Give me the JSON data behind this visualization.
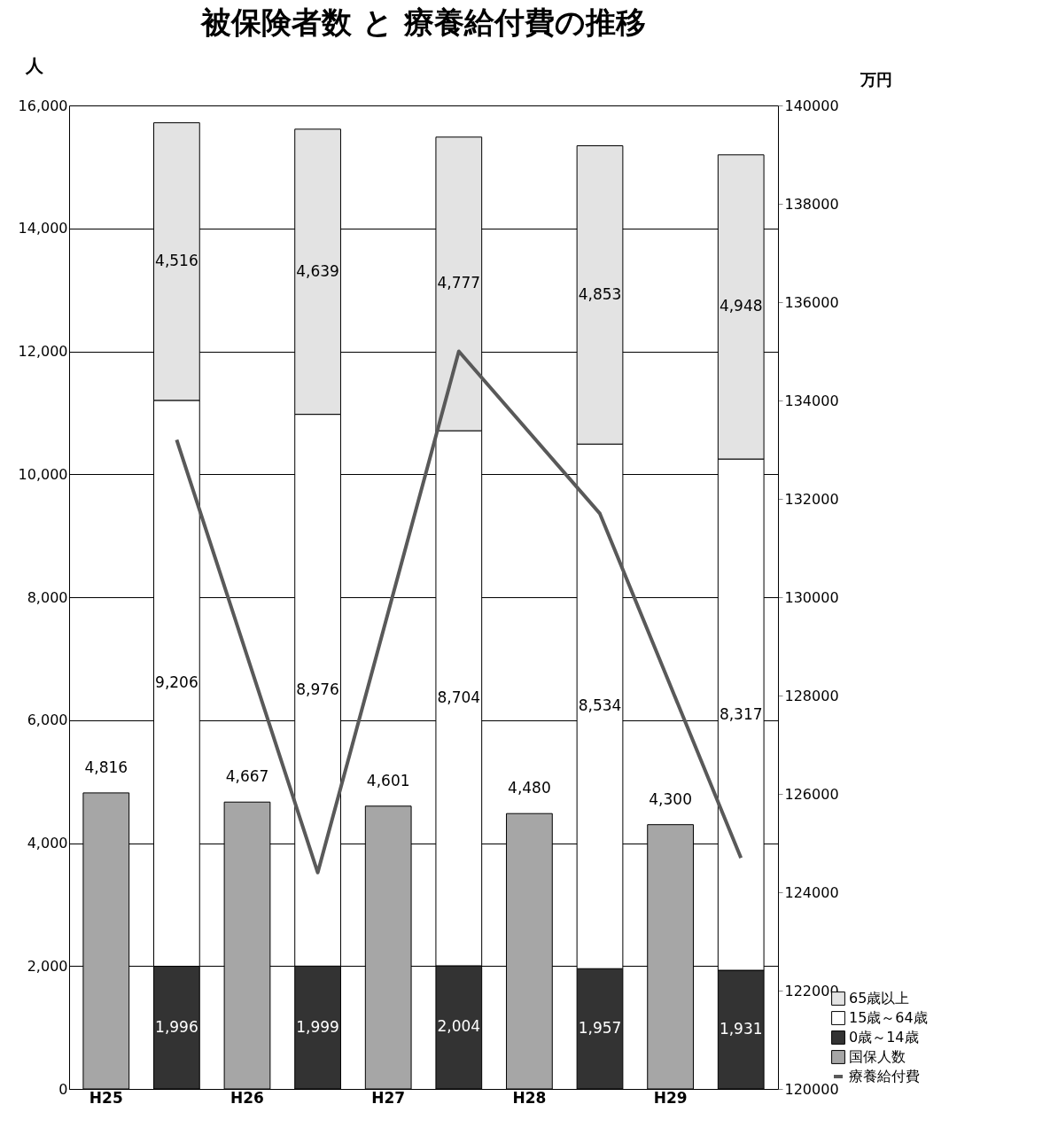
{
  "chart_data": {
    "type": "bar",
    "title": "被保険者数 と 療養給付費の推移",
    "ylabel": "人",
    "y2label": "万円",
    "categories": [
      "H25",
      null,
      "H26",
      null,
      "H27",
      null,
      "H28",
      null,
      "H29",
      null
    ],
    "stacked": true,
    "series": [
      {
        "name": "国保人数",
        "color": "#a6a6a6",
        "values": [
          4816,
          null,
          4667,
          null,
          4601,
          null,
          4480,
          null,
          4300,
          null
        ],
        "value_labels": [
          "4,816",
          null,
          "4,667",
          null,
          "4,601",
          null,
          "4,480",
          null,
          "4,300",
          null
        ]
      },
      {
        "name": "0歳～14歳",
        "color": "#333333",
        "values": [
          null,
          1996,
          null,
          1999,
          null,
          2004,
          null,
          1957,
          null,
          1931
        ],
        "value_labels": [
          null,
          "1,996",
          null,
          "1,999",
          null,
          "2,004",
          null,
          "1,957",
          null,
          "1,931"
        ]
      },
      {
        "name": "15歳～64歳",
        "color": "#ffffff",
        "values": [
          null,
          9206,
          null,
          8976,
          null,
          8704,
          null,
          8534,
          null,
          8317
        ],
        "value_labels": [
          null,
          "9,206",
          null,
          "8,976",
          null,
          "8,704",
          null,
          "8,534",
          null,
          "8,317"
        ]
      },
      {
        "name": "65歳以上",
        "color": "#e3e3e3",
        "values": [
          null,
          4516,
          null,
          4639,
          null,
          4777,
          null,
          4853,
          null,
          4948
        ],
        "value_labels": [
          null,
          "4,516",
          null,
          "4,639",
          null,
          "4,777",
          null,
          "4,853",
          null,
          "4,948"
        ]
      },
      {
        "name": "療養給付費",
        "type": "line",
        "axis": "y2",
        "color": "#595959",
        "values": [
          null,
          133200,
          null,
          124400,
          null,
          135000,
          null,
          131700,
          null,
          124700
        ]
      }
    ],
    "ylim": [
      0,
      16000
    ],
    "yticks": [
      {
        "value": 0,
        "label": "0"
      },
      {
        "value": 2000,
        "label": "2,000"
      },
      {
        "value": 4000,
        "label": "4,000"
      },
      {
        "value": 6000,
        "label": "6,000"
      },
      {
        "value": 8000,
        "label": "8,000"
      },
      {
        "value": 10000,
        "label": "10,000"
      },
      {
        "value": 12000,
        "label": "12,000"
      },
      {
        "value": 14000,
        "label": "14,000"
      },
      {
        "value": 16000,
        "label": "16,000"
      }
    ],
    "y2lim": [
      120000,
      140000
    ],
    "y2ticks": [
      120000,
      122000,
      124000,
      126000,
      128000,
      130000,
      132000,
      134000,
      136000,
      138000,
      140000
    ],
    "grid": "y",
    "legend": "bottom right"
  }
}
